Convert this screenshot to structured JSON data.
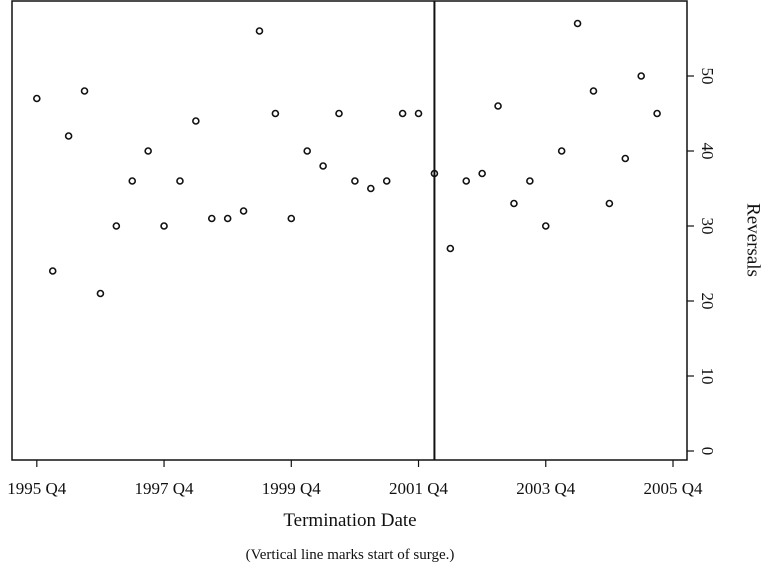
{
  "chart_data": {
    "type": "scatter",
    "x_label": "Termination Date",
    "y_label": "Reversals",
    "caption": "(Vertical line marks start of surge.)",
    "x": [
      1995.75,
      1996.0,
      1996.25,
      1996.5,
      1996.75,
      1997.0,
      1997.25,
      1997.5,
      1997.75,
      1998.0,
      1998.25,
      1998.5,
      1998.75,
      1999.0,
      1999.25,
      1999.5,
      1999.75,
      2000.0,
      2000.25,
      2000.5,
      2000.75,
      2001.0,
      2001.25,
      2001.5,
      2001.75,
      2002.0,
      2002.25,
      2002.5,
      2002.75,
      2003.0,
      2003.25,
      2003.5,
      2003.75,
      2004.0,
      2004.25,
      2004.5,
      2004.75,
      2005.0,
      2005.25,
      2005.5
    ],
    "values": [
      47,
      24,
      42,
      48,
      21,
      30,
      36,
      40,
      30,
      36,
      44,
      31,
      31,
      32,
      56,
      45,
      31,
      40,
      38,
      45,
      36,
      35,
      36,
      45,
      45,
      37,
      27,
      36,
      37,
      46,
      33,
      36,
      30,
      40,
      57,
      48,
      33,
      39,
      50,
      45
    ],
    "color": "#111111",
    "vline_x": 2002.0,
    "xlim": [
      1995.36,
      2005.97
    ],
    "ylim": [
      -1.2,
      60
    ],
    "xticks": [
      {
        "value": 1995.75,
        "label": "1995 Q4"
      },
      {
        "value": 1997.75,
        "label": "1997 Q4"
      },
      {
        "value": 1999.75,
        "label": "1999 Q4"
      },
      {
        "value": 2001.75,
        "label": "2001 Q4"
      },
      {
        "value": 2003.75,
        "label": "2003 Q4"
      },
      {
        "value": 2005.75,
        "label": "2005 Q4"
      }
    ],
    "yticks": [
      0,
      10,
      20,
      30,
      40,
      50
    ],
    "y_axis_side": "right",
    "grid": false
  }
}
